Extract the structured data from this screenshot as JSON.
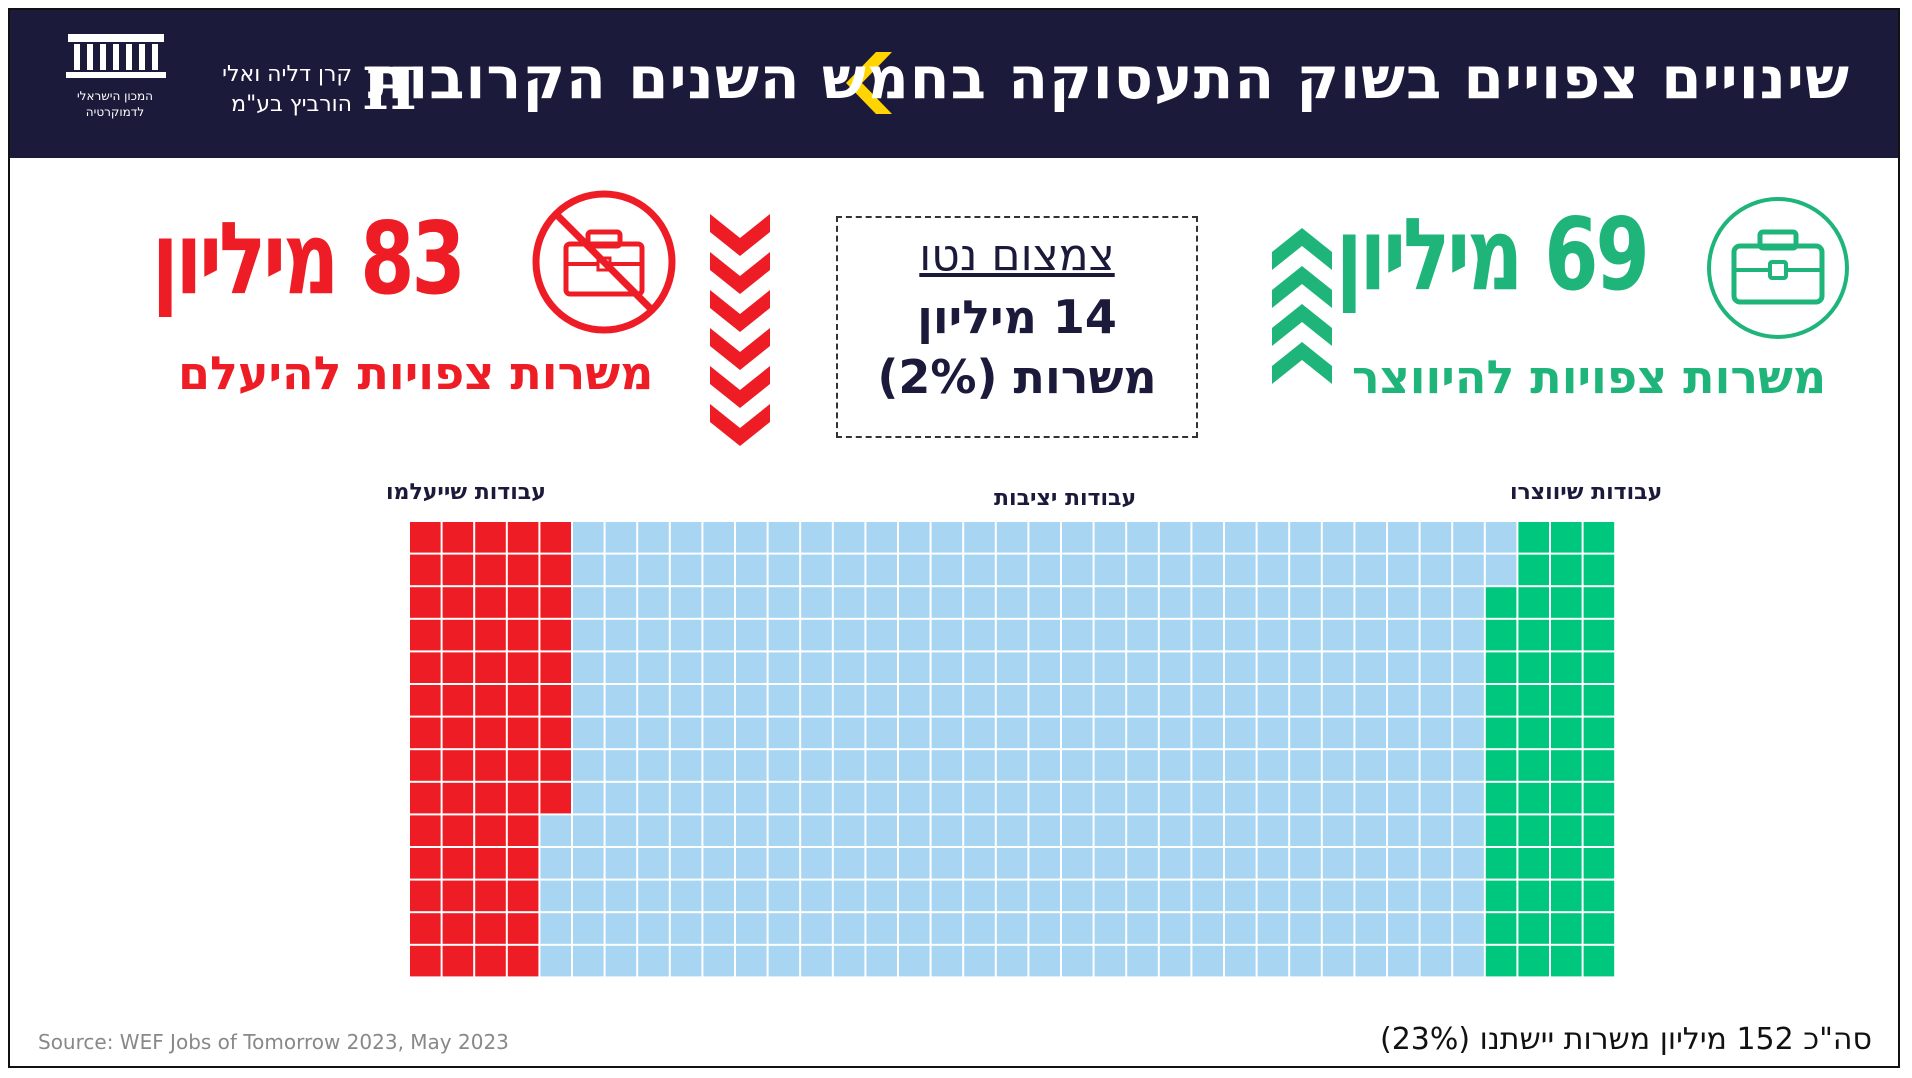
{
  "header": {
    "title": "שינויים צפויים בשוק התעסוקה בחמש השנים הקרובות",
    "institute_lines": [
      "המכון הישראלי",
      "לדמוקרטיה"
    ],
    "fund_lines": [
      "קרן דליה ואלי",
      "הורביץ בע\"מ"
    ],
    "fund_mark": "H"
  },
  "lost": {
    "number": "83 מיליון",
    "label_prefix": "משרות צפויות ",
    "label_emphasis": "להיעלם",
    "color": "#ee1c25"
  },
  "created": {
    "number": "69 מיליון",
    "label_prefix": "משרות צפויות ",
    "label_emphasis": "להיווצר",
    "color": "#1fb57a"
  },
  "net": {
    "title": "צמצום נטו",
    "line1": "14 מיליון",
    "line2": "משרות (2%)"
  },
  "categories": {
    "lost": "עבודות שייעלמו",
    "stable": "עבודות יציבות",
    "created": "עבודות שיווצרו"
  },
  "source": "Source: WEF Jobs of Tomorrow 2023, May 2023",
  "total": "סה\"כ 152 מיליון משרות יישתנו (23%)",
  "chart_data": {
    "type": "waffle",
    "unit": "מיליון משרות",
    "categories": [
      "עבודות שייעלמו",
      "עבודות יציבות",
      "עבודות שיווצרו"
    ],
    "values": [
      83,
      511,
      69
    ],
    "colors": [
      "#ee1c25",
      "#a8d6f2",
      "#00c77e"
    ],
    "grid": {
      "rows": 14,
      "cols": 37
    }
  }
}
